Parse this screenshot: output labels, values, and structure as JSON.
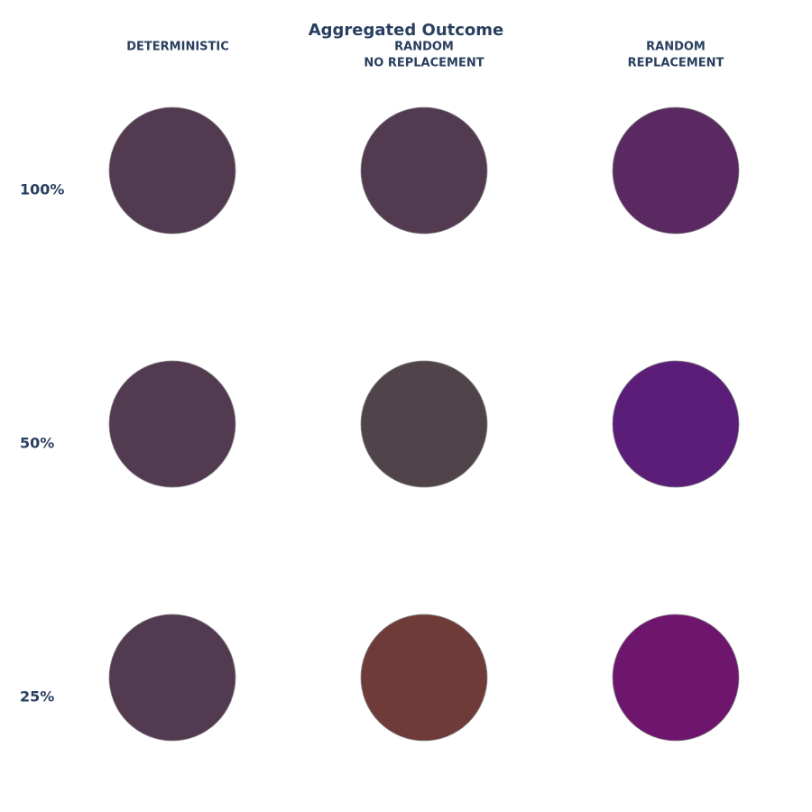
{
  "title": "Aggregated Outcome",
  "columns": [
    [
      "DETERMINISTIC"
    ],
    [
      "RANDOM",
      "NO REPLACEMENT"
    ],
    [
      "RANDOM",
      "REPLACEMENT"
    ]
  ],
  "rows": [
    "100%",
    "50%",
    "25%"
  ],
  "cells": [
    [
      "#523a50",
      "#523a50",
      "#5a2962"
    ],
    [
      "#523a50",
      "#51434a",
      "#5a1e78"
    ],
    [
      "#523a50",
      "#6e3b39",
      "#6e156e"
    ]
  ]
}
